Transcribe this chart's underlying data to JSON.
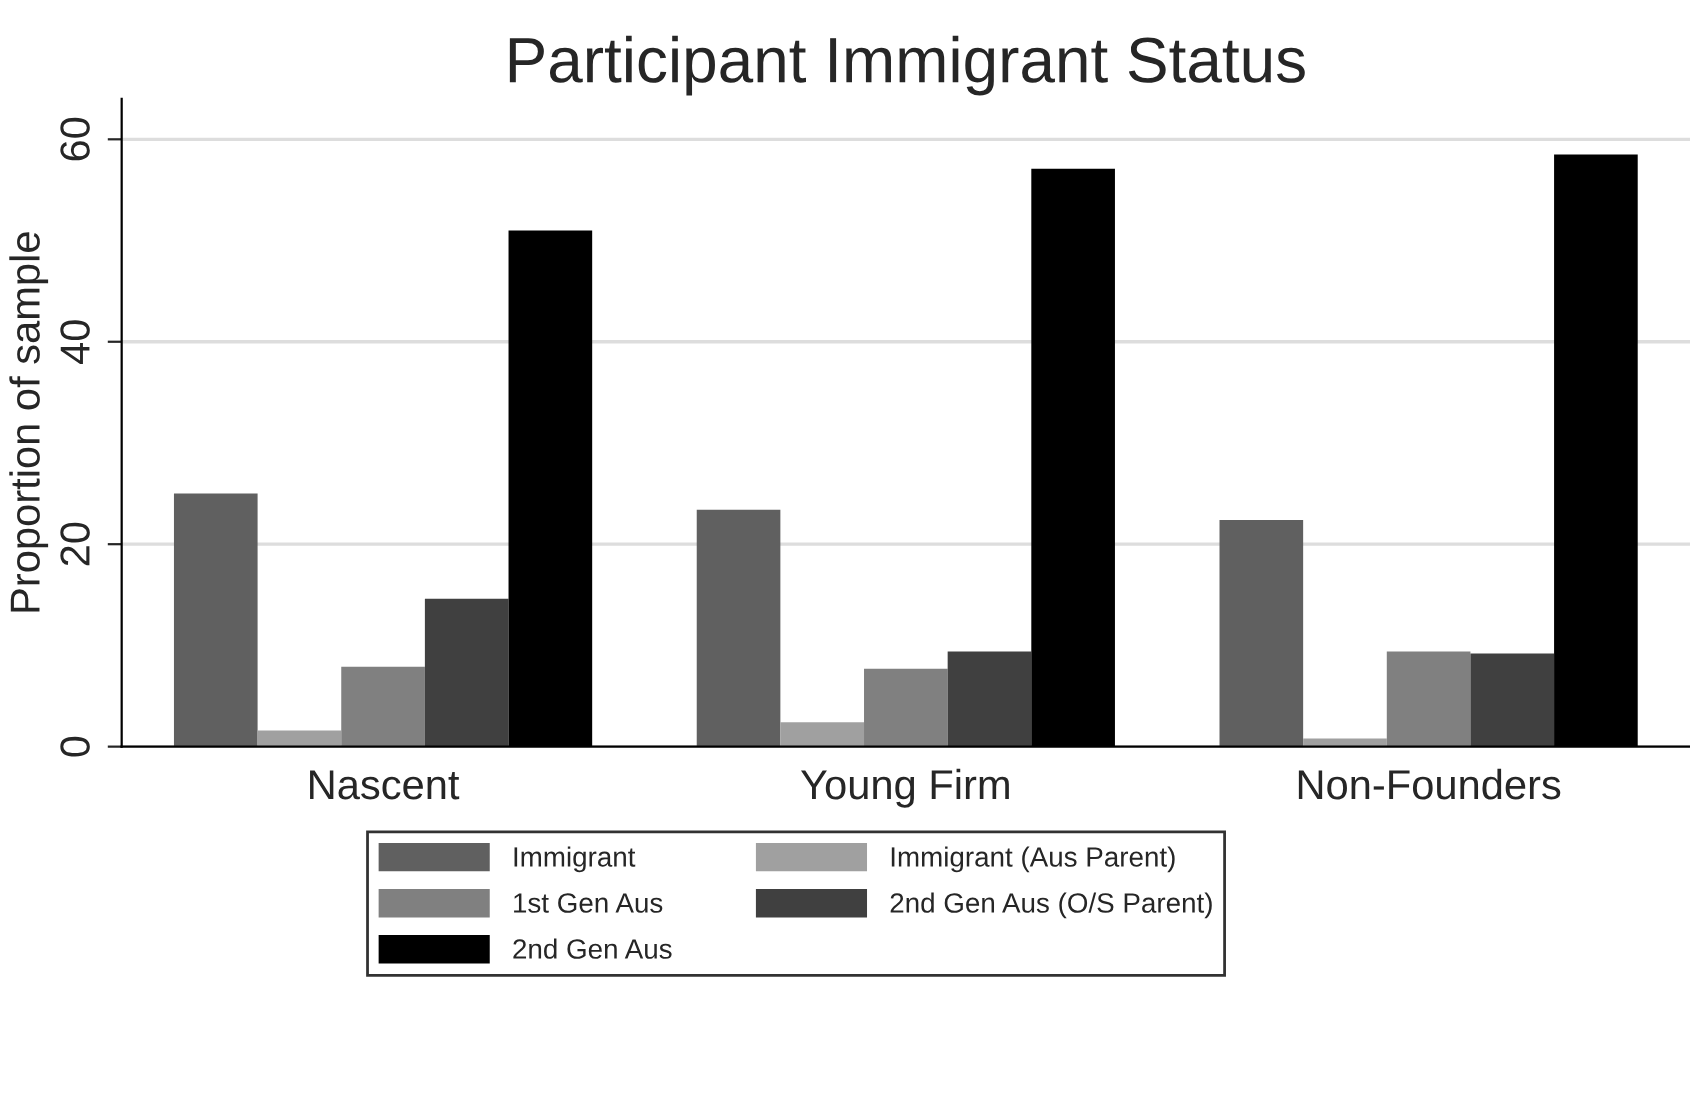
{
  "chart_data": {
    "type": "bar",
    "title": "Participant Immigrant Status",
    "ylabel": "Proportion of sample",
    "categories": [
      "Nascent",
      "Young Firm",
      "Non-Founders"
    ],
    "series": [
      {
        "name": "Immigrant",
        "color": "#606060",
        "values": [
          25.0,
          23.4,
          22.4
        ]
      },
      {
        "name": "Immigrant (Aus Parent)",
        "color": "#a0a0a0",
        "values": [
          1.6,
          2.4,
          0.8
        ]
      },
      {
        "name": "1st Gen Aus",
        "color": "#808080",
        "values": [
          7.9,
          7.7,
          9.4
        ]
      },
      {
        "name": "2nd Gen Aus (O/S Parent)",
        "color": "#404040",
        "values": [
          14.6,
          9.4,
          9.2
        ]
      },
      {
        "name": "2nd Gen Aus",
        "color": "#000000",
        "values": [
          51.0,
          57.1,
          58.5
        ]
      }
    ],
    "ylim": [
      0,
      64
    ],
    "yticks": [
      0,
      20,
      40,
      60
    ],
    "grid": "y",
    "legend": "bottom"
  }
}
